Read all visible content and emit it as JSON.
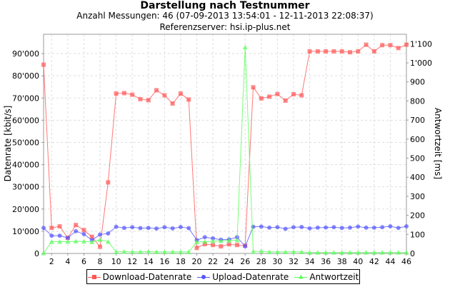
{
  "title": "Darstellung nach Testnummer",
  "subtitle": "Anzahl Messungen: 46 (07-09-2013 13:54:01 - 12-11-2013 22:08:37)",
  "server": "Referenzserver: hsi.ip-plus.net",
  "chart_data": {
    "type": "line",
    "title": "Darstellung nach Testnummer",
    "xlabel": "",
    "ylabel": "Datenrate [kbit/s]",
    "ylabel_right": "Antwortzeit [ms]",
    "xlim": [
      1,
      46
    ],
    "ylim": [
      0,
      98700
    ],
    "ylim_right": [
      0,
      1150
    ],
    "grid": true,
    "legend_position": "bottom",
    "x_ticks": [
      "2",
      "4",
      "6",
      "8",
      "10",
      "12",
      "14",
      "16",
      "18",
      "20",
      "22",
      "24",
      "26",
      "28",
      "30",
      "32",
      "34",
      "36",
      "38",
      "40",
      "42",
      "44",
      "46"
    ],
    "y_ticks": [
      {
        "v": 0,
        "l": "0"
      },
      {
        "v": 10000,
        "l": "10'000"
      },
      {
        "v": 20000,
        "l": "20'000"
      },
      {
        "v": 30000,
        "l": "30'000"
      },
      {
        "v": 40000,
        "l": "40'000"
      },
      {
        "v": 50000,
        "l": "50'000"
      },
      {
        "v": 60000,
        "l": "60'000"
      },
      {
        "v": 70000,
        "l": "70'000"
      },
      {
        "v": 80000,
        "l": "80'000"
      },
      {
        "v": 90000,
        "l": "90'000"
      }
    ],
    "y_ticks_right": [
      {
        "v": 0,
        "l": "0"
      },
      {
        "v": 100,
        "l": "100"
      },
      {
        "v": 200,
        "l": "200"
      },
      {
        "v": 300,
        "l": "300"
      },
      {
        "v": 400,
        "l": "400"
      },
      {
        "v": 500,
        "l": "500"
      },
      {
        "v": 600,
        "l": "600"
      },
      {
        "v": 700,
        "l": "700"
      },
      {
        "v": 800,
        "l": "800"
      },
      {
        "v": 900,
        "l": "900"
      },
      {
        "v": 1000,
        "l": "1'000"
      },
      {
        "v": 1100,
        "l": "1'100"
      }
    ],
    "x": [
      1,
      2,
      3,
      4,
      5,
      6,
      7,
      8,
      9,
      10,
      11,
      12,
      13,
      14,
      15,
      16,
      17,
      18,
      19,
      20,
      21,
      22,
      23,
      24,
      25,
      26,
      27,
      28,
      29,
      30,
      31,
      32,
      33,
      34,
      35,
      36,
      37,
      38,
      39,
      40,
      41,
      42,
      43,
      44,
      45,
      46
    ],
    "series": [
      {
        "name": "Download-Datenrate",
        "axis": "left",
        "color": "#ff5555",
        "marker": "square",
        "values": [
          85000,
          11500,
          12200,
          7000,
          12800,
          10500,
          7500,
          3000,
          32000,
          72000,
          72200,
          71500,
          69500,
          69000,
          73500,
          71200,
          67500,
          72000,
          69300,
          2500,
          4200,
          3800,
          3200,
          4100,
          3800,
          3500,
          74800,
          69800,
          70600,
          71800,
          68800,
          71700,
          71200,
          91000,
          91000,
          91000,
          91000,
          91000,
          90600,
          91000,
          94000,
          91000,
          93800,
          93800,
          92500,
          94000
        ]
      },
      {
        "name": "Upload-Datenrate",
        "axis": "left",
        "color": "#5555ff",
        "marker": "circle",
        "values": [
          11500,
          8000,
          8000,
          7000,
          10000,
          8700,
          6000,
          8500,
          9000,
          12000,
          11500,
          11800,
          11400,
          11500,
          11200,
          11800,
          11300,
          11900,
          11400,
          6000,
          7300,
          6800,
          6200,
          6300,
          7300,
          3200,
          12000,
          12100,
          11600,
          11800,
          11100,
          11800,
          11900,
          11300,
          11600,
          11700,
          11800,
          11500,
          11600,
          12100,
          11600,
          11600,
          11800,
          12200,
          11500,
          12200
        ]
      },
      {
        "name": "Antwortzeit",
        "axis": "right",
        "color": "#55ff55",
        "marker": "triangle",
        "values": [
          2,
          62,
          62,
          62,
          64,
          63,
          60,
          72,
          62,
          8,
          10,
          8,
          8,
          10,
          8,
          8,
          8,
          8,
          8,
          60,
          62,
          64,
          66,
          68,
          70,
          1082,
          10,
          12,
          8,
          8,
          8,
          9,
          8,
          5,
          5,
          5,
          5,
          5,
          5,
          5,
          5,
          5,
          5,
          5,
          5,
          5
        ]
      }
    ]
  }
}
